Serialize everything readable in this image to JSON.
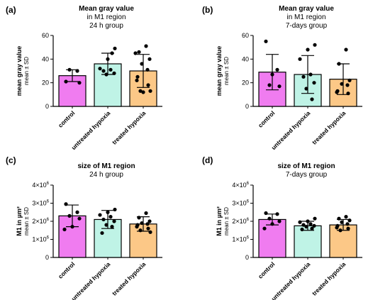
{
  "colors": {
    "control": "#f07cf0",
    "untreated": "#bff3e6",
    "treated": "#fcc887"
  },
  "chart_data": [
    {
      "type": "bar",
      "panel_letter": "(a)",
      "title": "Mean gray value",
      "subtitle": [
        "in M1 region",
        "24 h group"
      ],
      "ylabel": "mean gray value",
      "ylabel_sub": "mean ± SD",
      "ylim": [
        0,
        60
      ],
      "yticks": [
        0,
        20,
        40,
        60
      ],
      "ytick_labels": [
        "0",
        "20",
        "40",
        "60"
      ],
      "categories": [
        "control",
        "untreated hypoxia",
        "treated hypoxia"
      ],
      "values": [
        26,
        36,
        30
      ],
      "sd": [
        5,
        9,
        14
      ],
      "points": [
        [
          21,
          30,
          31,
          20
        ],
        [
          49,
          40,
          32,
          31,
          30,
          28,
          27,
          45
        ],
        [
          51,
          46,
          40,
          36,
          31,
          25,
          22,
          18,
          13,
          13,
          12,
          45
        ]
      ]
    },
    {
      "type": "bar",
      "panel_letter": "(b)",
      "title": "Mean gray value",
      "subtitle": [
        "in M1 region",
        "7-days group"
      ],
      "ylabel": "mean gray value",
      "ylabel_sub": "mean ± SD",
      "ylim": [
        0,
        60
      ],
      "yticks": [
        0,
        20,
        40,
        60
      ],
      "ytick_labels": [
        "0",
        "20",
        "40",
        "60"
      ],
      "categories": [
        "control",
        "untreated hypoxia",
        "treated hypoxia"
      ],
      "values": [
        29,
        27,
        23
      ],
      "sd": [
        15,
        16,
        13
      ],
      "points": [
        [
          55,
          31,
          18,
          17,
          27
        ],
        [
          52,
          48,
          40,
          27,
          25,
          20,
          15,
          6
        ],
        [
          48,
          36,
          22,
          19,
          18,
          13,
          12,
          11
        ]
      ]
    },
    {
      "type": "bar",
      "panel_letter": "(c)",
      "title": "size of M1 region",
      "subtitle": [
        "24 h group"
      ],
      "ylabel": "M1 in µm²",
      "ylabel_sub": "mean ± SD",
      "ylim": [
        0,
        4000000
      ],
      "yticks": [
        0,
        1000000,
        2000000,
        3000000,
        4000000
      ],
      "ytick_labels": [
        [
          "0",
          ""
        ],
        [
          "1×10",
          "6"
        ],
        [
          "2×10",
          "6"
        ],
        [
          "3×10",
          "6"
        ],
        [
          "4×10",
          "6"
        ]
      ],
      "categories": [
        "control",
        "untreated hypoxia",
        "treated hypoxia"
      ],
      "values": [
        2300000,
        2100000,
        1850000
      ],
      "sd": [
        600000,
        500000,
        400000
      ],
      "points": [
        [
          2950000,
          2500000,
          2300000,
          2150000,
          1700000,
          1550000
        ],
        [
          2650000,
          2500000,
          2350000,
          2250000,
          2100000,
          2000000,
          1800000,
          1700000,
          1350000
        ],
        [
          2450000,
          2200000,
          2000000,
          1900000,
          1850000,
          1800000,
          1700000,
          1600000,
          1500000,
          1400000
        ]
      ]
    },
    {
      "type": "bar",
      "panel_letter": "(d)",
      "title": "size of M1 region",
      "subtitle": [
        "7-days group"
      ],
      "ylabel": "M1 in µm²",
      "ylabel_sub": "mean ± SD",
      "ylim": [
        0,
        4000000
      ],
      "yticks": [
        0,
        1000000,
        2000000,
        3000000,
        4000000
      ],
      "ytick_labels": [
        [
          "0",
          ""
        ],
        [
          "1×10",
          "6"
        ],
        [
          "2×10",
          "6"
        ],
        [
          "3×10",
          "6"
        ],
        [
          "4×10",
          "6"
        ]
      ],
      "categories": [
        "control",
        "untreated hypoxia",
        "treated hypoxia"
      ],
      "values": [
        2100000,
        1750000,
        1800000
      ],
      "sd": [
        300000,
        250000,
        300000
      ],
      "points": [
        [
          2450000,
          2400000,
          2150000,
          2000000,
          1850000,
          1600000
        ],
        [
          2150000,
          2000000,
          1950000,
          1850000,
          1800000,
          1750000,
          1700000,
          1600000,
          1550000
        ],
        [
          2250000,
          2150000,
          2050000,
          1950000,
          1850000,
          1750000,
          1650000,
          1600000,
          1500000
        ]
      ]
    }
  ]
}
